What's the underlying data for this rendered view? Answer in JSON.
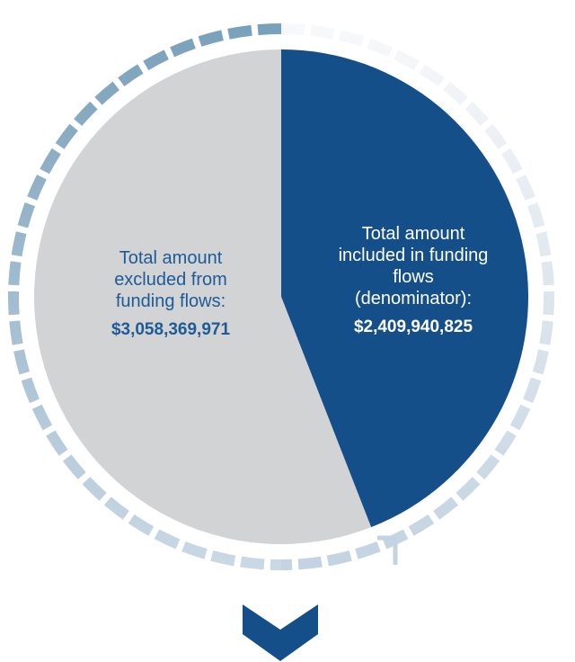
{
  "chart_data": {
    "type": "pie",
    "categories": [
      "Total amount included in funding flows (denominator):",
      "Total amount excluded from funding flows:"
    ],
    "values": [
      2409940825,
      3058369971
    ],
    "value_labels": [
      "$2,409,940,825",
      "$3,058,369,971"
    ],
    "colors": [
      "#154f8a",
      "#d2d3d5"
    ],
    "label_colors": [
      "#ffffff",
      "#1e5a96"
    ]
  }
}
